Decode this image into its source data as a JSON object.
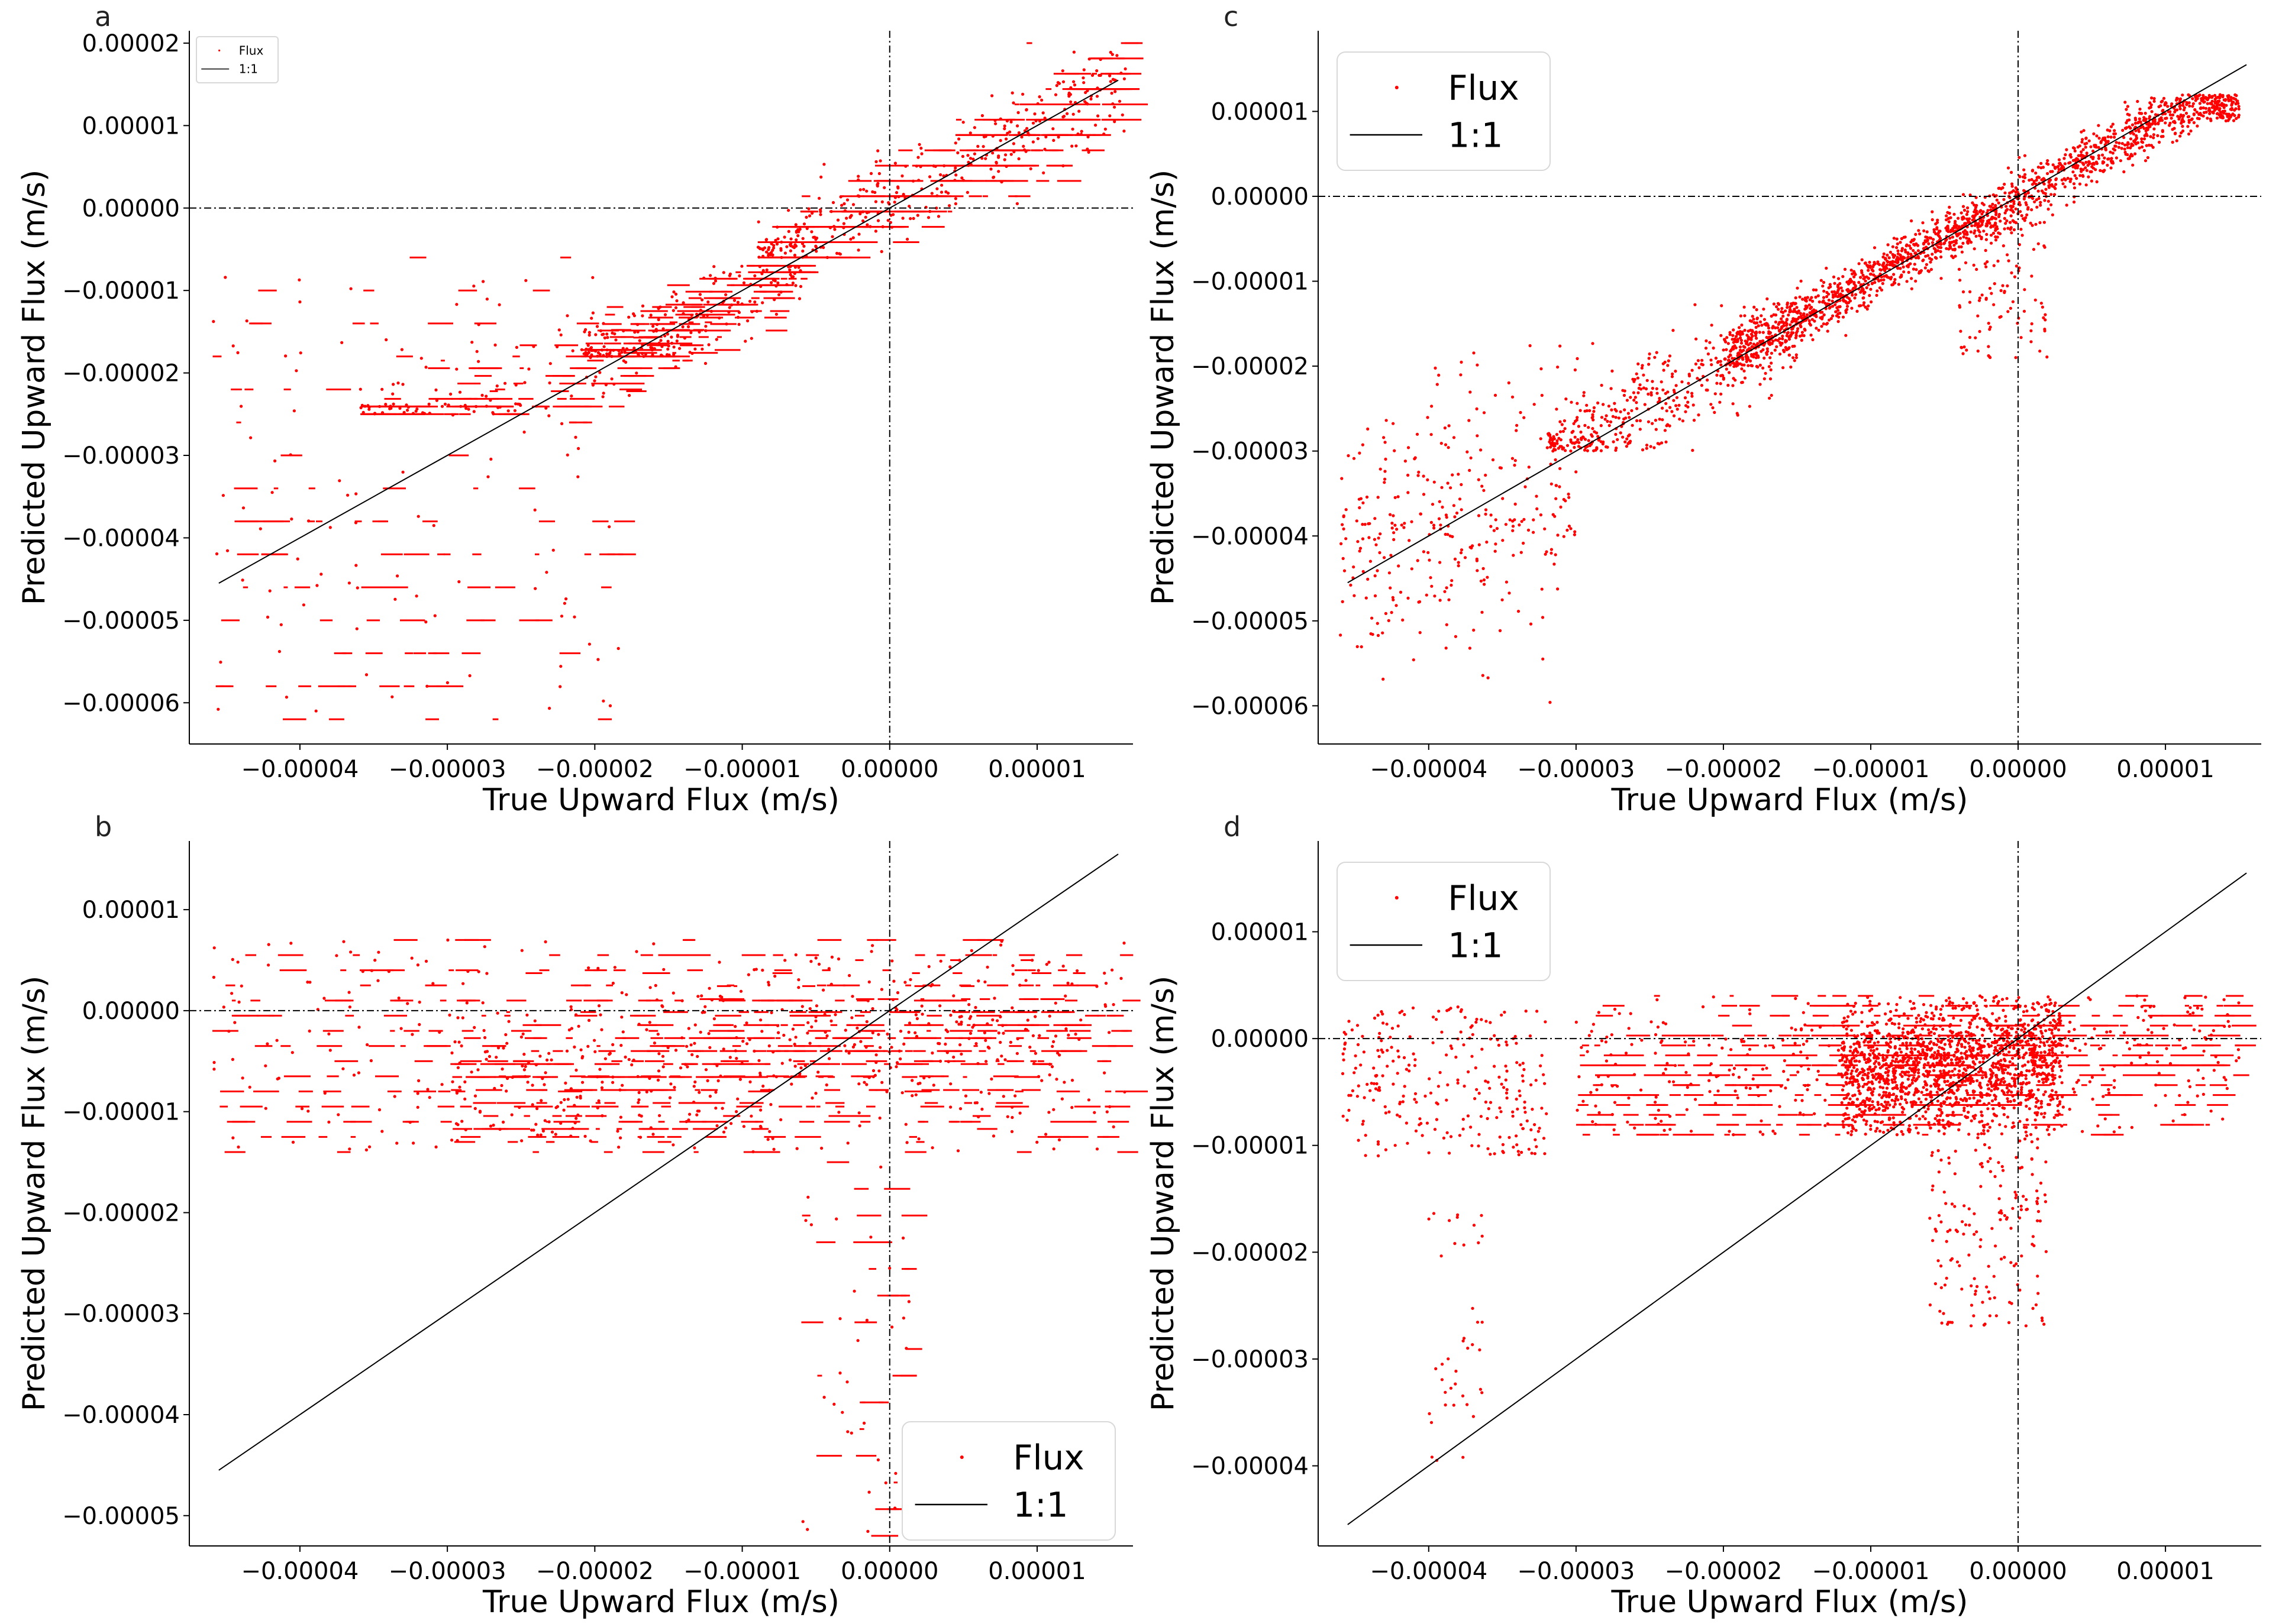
{
  "figure": {
    "title": "",
    "series_name": "Flux",
    "reference_name": "1:1",
    "colors": {
      "points": "#ff0000",
      "ref_line": "#000000",
      "zero_lines": "#000000",
      "background": "#ffffff"
    }
  },
  "chart_data": [
    {
      "panel": "a",
      "type": "scatter",
      "title": "",
      "xlabel": "True Upward Flux (m/s)",
      "ylabel": "Predicted Upward Flux (m/s)",
      "xlim": [
        -4.75e-05,
        1.65e-05
      ],
      "ylim": [
        -6.5e-05,
        2.15e-05
      ],
      "xticks": [
        -4e-05,
        -3e-05,
        -2e-05,
        -1e-05,
        0.0,
        1e-05
      ],
      "xtick_labels": [
        "−0.00004",
        "−0.00003",
        "−0.00002",
        "−0.00001",
        "0.00000",
        "0.00001"
      ],
      "yticks": [
        2e-05,
        1e-05,
        0.0,
        -1e-05,
        -2e-05,
        -3e-05,
        -4e-05,
        -5e-05,
        -6e-05
      ],
      "ytick_labels": [
        "0.00002",
        "0.00001",
        "0.00000",
        "−0.00001",
        "−0.00002",
        "−0.00003",
        "−0.00004",
        "−0.00005",
        "−0.00006"
      ],
      "ref_line": {
        "x": [
          -4.55e-05,
          1.55e-05
        ],
        "y": [
          -4.55e-05,
          1.55e-05
        ]
      },
      "zero_lines": {
        "x": 0.0,
        "y": 0.0
      },
      "legend": {
        "location": "upper-left",
        "size": "small",
        "entries": [
          "Flux",
          "1:1"
        ]
      },
      "series": [
        {
          "name": "Flux",
          "clusters": [
            {
              "x": [
                -9e-06,
                1.6e-05
              ],
              "y": [
                -6e-06,
                2e-05
              ],
              "trend": 0.92,
              "spread": 2.8e-06,
              "n": 750,
              "horizontal": true
            },
            {
              "x": [
                -2.1e-05,
                -6e-06
              ],
              "y": [
                -1.8e-05,
                -7e-06
              ],
              "trend": 0.85,
              "spread": 2.5e-06,
              "n": 380,
              "horizontal": true
            },
            {
              "x": [
                -3.6e-05,
                -1.2e-05
              ],
              "y": [
                -2.5e-05,
                -1.2e-05
              ],
              "trend": 0.6,
              "spread": 3.5e-06,
              "n": 260,
              "horizontal": true
            },
            {
              "x": [
                -4.6e-05,
                -1.8e-05
              ],
              "y": [
                -6.2e-05,
                -6e-06
              ],
              "trend": 0.0,
              "spread": 0.0,
              "n": 210,
              "horizontal": true
            }
          ]
        }
      ]
    },
    {
      "panel": "b",
      "type": "scatter",
      "title": "",
      "xlabel": "True Upward Flux (m/s)",
      "ylabel": "Predicted Upward Flux (m/s)",
      "xlim": [
        -4.75e-05,
        1.65e-05
      ],
      "ylim": [
        -5.3e-05,
        1.68e-05
      ],
      "xticks": [
        -4e-05,
        -3e-05,
        -2e-05,
        -1e-05,
        0.0,
        1e-05
      ],
      "xtick_labels": [
        "−0.00004",
        "−0.00003",
        "−0.00002",
        "−0.00001",
        "0.00000",
        "0.00001"
      ],
      "yticks": [
        1e-05,
        0.0,
        -1e-05,
        -2e-05,
        -3e-05,
        -4e-05,
        -5e-05
      ],
      "ytick_labels": [
        "0.00001",
        "0.00000",
        "−0.00001",
        "−0.00002",
        "−0.00003",
        "−0.00004",
        "−0.00005"
      ],
      "ref_line": {
        "x": [
          -4.55e-05,
          1.55e-05
        ],
        "y": [
          -4.55e-05,
          1.55e-05
        ]
      },
      "zero_lines": {
        "x": 0.0,
        "y": 0.0
      },
      "legend": {
        "location": "lower-right",
        "size": "large",
        "entries": [
          "Flux",
          "1:1"
        ]
      },
      "series": [
        {
          "name": "Flux",
          "clusters": [
            {
              "x": [
                -4.6e-05,
                1.6e-05
              ],
              "y": [
                -1.4e-05,
                7e-06
              ],
              "trend": 0.0,
              "spread": 0.0,
              "n": 650,
              "horizontal": true
            },
            {
              "x": [
                -3e-05,
                1.3e-05
              ],
              "y": [
                -1.3e-05,
                5e-06
              ],
              "trend": 0.15,
              "spread": 4e-06,
              "n": 700,
              "horizontal": true
            },
            {
              "x": [
                -6e-06,
                2e-06
              ],
              "y": [
                -5.2e-05,
                -1.5e-05
              ],
              "trend": 0.0,
              "spread": 0.0,
              "n": 70,
              "horizontal": true
            }
          ]
        }
      ]
    },
    {
      "panel": "c",
      "type": "scatter",
      "title": "",
      "xlabel": "True Upward Flux (m/s)",
      "ylabel": "Predicted Upward Flux (m/s)",
      "xlim": [
        -4.75e-05,
        1.65e-05
      ],
      "ylim": [
        -6.45e-05,
        1.95e-05
      ],
      "xticks": [
        -4e-05,
        -3e-05,
        -2e-05,
        -1e-05,
        0.0,
        1e-05
      ],
      "xtick_labels": [
        "−0.00004",
        "−0.00003",
        "−0.00002",
        "−0.00001",
        "0.00000",
        "0.00001"
      ],
      "yticks": [
        1e-05,
        0.0,
        -1e-05,
        -2e-05,
        -3e-05,
        -4e-05,
        -5e-05,
        -6e-05
      ],
      "ytick_labels": [
        "0.00001",
        "0.00000",
        "−0.00001",
        "−0.00002",
        "−0.00003",
        "−0.00004",
        "−0.00005",
        "−0.00006"
      ],
      "ref_line": {
        "x": [
          -4.55e-05,
          1.55e-05
        ],
        "y": [
          -4.55e-05,
          1.55e-05
        ]
      },
      "zero_lines": {
        "x": 0.0,
        "y": 0.0
      },
      "legend": {
        "location": "upper-left",
        "size": "large",
        "entries": [
          "Flux",
          "1:1"
        ]
      },
      "series": [
        {
          "name": "Flux",
          "clusters": [
            {
              "x": [
                -2e-05,
                1.5e-05
              ],
              "y": [
                -2e-05,
                1.2e-05
              ],
              "trend": 0.95,
              "spread": 1.5e-06,
              "n": 1700,
              "horizontal": false
            },
            {
              "x": [
                -3.2e-05,
                -1.5e-05
              ],
              "y": [
                -3e-05,
                -1.2e-05
              ],
              "trend": 0.9,
              "spread": 3e-06,
              "n": 450,
              "horizontal": false
            },
            {
              "x": [
                -4.6e-05,
                -3e-05
              ],
              "y": [
                -6e-05,
                -1.6e-05
              ],
              "trend": 0.5,
              "spread": 8e-06,
              "n": 320,
              "horizontal": false
            },
            {
              "x": [
                -4e-06,
                2e-06
              ],
              "y": [
                -1.9e-05,
                -2e-06
              ],
              "trend": 0.0,
              "spread": 0.0,
              "n": 120,
              "horizontal": false
            }
          ]
        }
      ]
    },
    {
      "panel": "d",
      "type": "scatter",
      "title": "",
      "xlabel": "True Upward Flux (m/s)",
      "ylabel": "Predicted Upward Flux (m/s)",
      "xlim": [
        -4.75e-05,
        1.65e-05
      ],
      "ylim": [
        -4.75e-05,
        1.85e-05
      ],
      "xticks": [
        -4e-05,
        -3e-05,
        -2e-05,
        -1e-05,
        0.0,
        1e-05
      ],
      "xtick_labels": [
        "−0.00004",
        "−0.00003",
        "−0.00002",
        "−0.00001",
        "0.00000",
        "0.00001"
      ],
      "yticks": [
        1e-05,
        0.0,
        -1e-05,
        -2e-05,
        -3e-05,
        -4e-05
      ],
      "ytick_labels": [
        "0.00001",
        "0.00000",
        "−0.00001",
        "−0.00002",
        "−0.00003",
        "−0.00004"
      ],
      "ref_line": {
        "x": [
          -4.55e-05,
          1.55e-05
        ],
        "y": [
          -4.55e-05,
          1.55e-05
        ]
      },
      "zero_lines": {
        "x": 0.0,
        "y": 0.0
      },
      "legend": {
        "location": "upper-left",
        "size": "large",
        "entries": [
          "Flux",
          "1:1"
        ]
      },
      "series": [
        {
          "name": "Flux",
          "clusters": [
            {
              "x": [
                -1.2e-05,
                3e-06
              ],
              "y": [
                -9e-06,
                4e-06
              ],
              "trend": 0.1,
              "spread": 3e-06,
              "n": 1500,
              "horizontal": false
            },
            {
              "x": [
                -3e-05,
                1.5e-05
              ],
              "y": [
                -9e-06,
                4e-06
              ],
              "trend": 0.05,
              "spread": 3.5e-06,
              "n": 900,
              "horizontal": true
            },
            {
              "x": [
                -4.6e-05,
                -3.2e-05
              ],
              "y": [
                -1.1e-05,
                3e-06
              ],
              "trend": 0.0,
              "spread": 5e-06,
              "n": 260,
              "horizontal": false
            },
            {
              "x": [
                -6e-06,
                2e-06
              ],
              "y": [
                -2.7e-05,
                -9e-06
              ],
              "trend": 0.0,
              "spread": 0.0,
              "n": 160,
              "horizontal": false
            },
            {
              "x": [
                -4e-05,
                -3.6e-05
              ],
              "y": [
                -4e-05,
                -1.6e-05
              ],
              "trend": 0.0,
              "spread": 0.0,
              "n": 40,
              "horizontal": false
            }
          ]
        }
      ]
    }
  ]
}
